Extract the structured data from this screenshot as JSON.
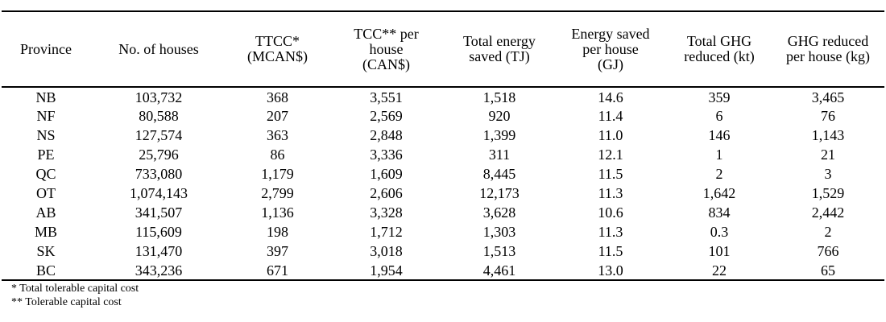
{
  "table": {
    "columns": [
      "Province",
      "No. of houses",
      "TTCC*\n(MCAN$)",
      "TCC** per\nhouse\n(CAN$)",
      "Total energy\nsaved (TJ)",
      "Energy saved\nper house\n(GJ)",
      "Total GHG\nreduced (kt)",
      "GHG reduced\nper house (kg)"
    ],
    "rows": [
      [
        "NB",
        "103,732",
        "368",
        "3,551",
        "1,518",
        "14.6",
        "359",
        "3,465"
      ],
      [
        "NF",
        "80,588",
        "207",
        "2,569",
        "920",
        "11.4",
        "6",
        "76"
      ],
      [
        "NS",
        "127,574",
        "363",
        "2,848",
        "1,399",
        "11.0",
        "146",
        "1,143"
      ],
      [
        "PE",
        "25,796",
        "86",
        "3,336",
        "311",
        "12.1",
        "1",
        "21"
      ],
      [
        "QC",
        "733,080",
        "1,179",
        "1,609",
        "8,445",
        "11.5",
        "2",
        "3"
      ],
      [
        "OT",
        "1,074,143",
        "2,799",
        "2,606",
        "12,173",
        "11.3",
        "1,642",
        "1,529"
      ],
      [
        "AB",
        "341,507",
        "1,136",
        "3,328",
        "3,628",
        "10.6",
        "834",
        "2,442"
      ],
      [
        "MB",
        "115,609",
        "198",
        "1,712",
        "1,303",
        "11.3",
        "0.3",
        "2"
      ],
      [
        "SK",
        "131,470",
        "397",
        "3,018",
        "1,513",
        "11.5",
        "101",
        "766"
      ],
      [
        "BC",
        "343,236",
        "671",
        "1,954",
        "4,461",
        "13.0",
        "22",
        "65"
      ]
    ]
  },
  "footnotes": [
    "* Total tolerable capital cost",
    "** Tolerable capital cost"
  ]
}
